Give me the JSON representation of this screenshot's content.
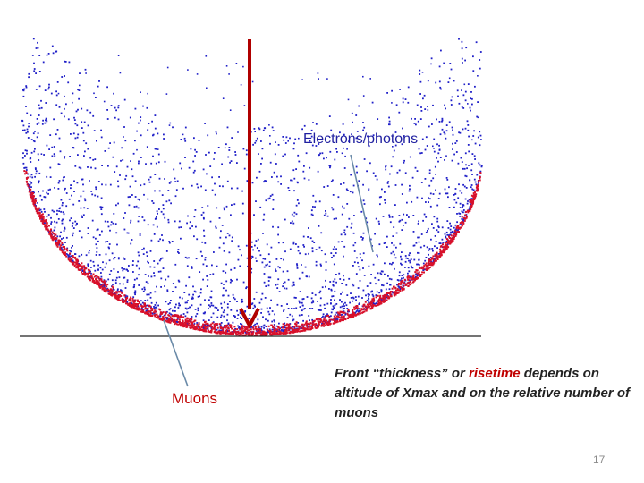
{
  "labels": {
    "electrons_photons": "Electrons/photons",
    "muons": "Muons"
  },
  "caption": {
    "part1": "Front “thickness” or ",
    "highlight": "risetime",
    "part2": " depends on altitude of Xmax and on the relative number of muons"
  },
  "slide_number": "17",
  "colors": {
    "electrons": "#1f1fc8",
    "muons": "#d8102a",
    "arrow": "#b00000",
    "pointer_line": "#6a8aa8"
  }
}
